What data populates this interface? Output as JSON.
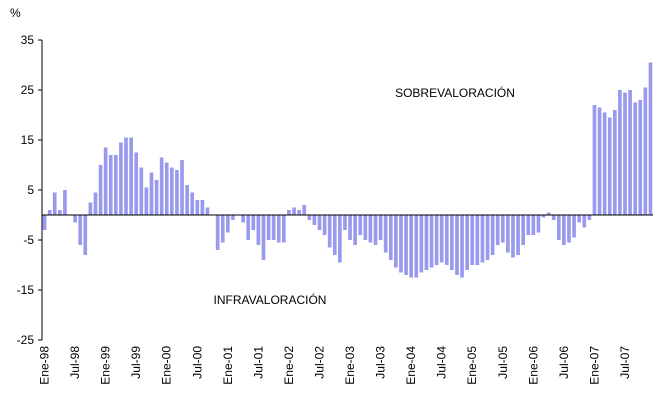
{
  "chart_data": {
    "type": "bar",
    "y_label": "%",
    "annotations": [
      "SOBREVALORACIÓN",
      "INFRAVALORACIÓN"
    ],
    "color": "#9999ee",
    "ylim": [
      -25,
      35
    ],
    "yticks": [
      35,
      25,
      15,
      5,
      -5,
      -15,
      -25
    ],
    "categories": [
      "Ene-98",
      null,
      null,
      null,
      null,
      null,
      "Jul-98",
      null,
      null,
      null,
      null,
      null,
      "Ene-99",
      null,
      null,
      null,
      null,
      null,
      "Jul-99",
      null,
      null,
      null,
      null,
      null,
      "Ene-00",
      null,
      null,
      null,
      null,
      null,
      "Jul-00",
      null,
      null,
      null,
      null,
      null,
      "Ene-01",
      null,
      null,
      null,
      null,
      null,
      "Jul-01",
      null,
      null,
      null,
      null,
      null,
      "Ene-02",
      null,
      null,
      null,
      null,
      null,
      "Jul-02",
      null,
      null,
      null,
      null,
      null,
      "Ene-03",
      null,
      null,
      null,
      null,
      null,
      "Jul-03",
      null,
      null,
      null,
      null,
      null,
      "Ene-04",
      null,
      null,
      null,
      null,
      null,
      "Jul-04",
      null,
      null,
      null,
      null,
      null,
      "Ene-05",
      null,
      null,
      null,
      null,
      null,
      "Jul-05",
      null,
      null,
      null,
      null,
      null,
      "Ene-06",
      null,
      null,
      null,
      null,
      null,
      "Jul-06",
      null,
      null,
      null,
      null,
      null,
      "Ene-07",
      null,
      null,
      null,
      null,
      null,
      "Jul-07",
      null,
      null,
      null,
      null,
      null
    ],
    "values": [
      -3,
      1,
      4.5,
      1,
      5,
      0,
      -1.5,
      -6,
      -8,
      2.5,
      4.5,
      10,
      13.5,
      12,
      12,
      14.5,
      15.5,
      15.5,
      12.5,
      9.5,
      5.5,
      8.5,
      7,
      11.5,
      10.5,
      9.5,
      9,
      11,
      6,
      4.5,
      3,
      3,
      1.5,
      0,
      -7,
      -5.5,
      -3.5,
      -1,
      0,
      -1.5,
      -5,
      -3,
      -6,
      -9,
      -5,
      -5,
      -5.5,
      -5.5,
      1,
      1.5,
      1,
      2,
      -1,
      -2,
      -3,
      -4,
      -6.5,
      -8,
      -9.5,
      -3,
      -5,
      -6,
      -4,
      -5,
      -5.5,
      -6,
      -5,
      -7.5,
      -9,
      -10.5,
      -11.5,
      -12,
      -12.5,
      -12.5,
      -11.5,
      -11,
      -10.5,
      -10,
      -9.5,
      -10,
      -11,
      -12,
      -12.5,
      -11,
      -10,
      -10,
      -9.5,
      -9,
      -8,
      -6,
      -5.5,
      -7.5,
      -8.5,
      -8,
      -6,
      -4,
      -4,
      -3.5,
      -0.5,
      0.5,
      -1,
      -5,
      -6,
      -5.5,
      -4.5,
      -1.5,
      -2.5,
      -1,
      22,
      21.5,
      20.5,
      19.5,
      21,
      25,
      24.5,
      25,
      22.5,
      23,
      25.5,
      30.5
    ]
  }
}
